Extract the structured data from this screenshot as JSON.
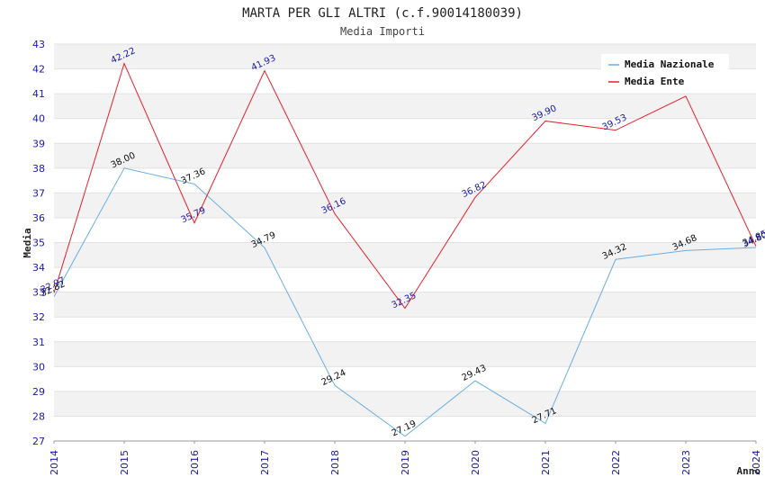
{
  "header": {
    "title": "MARTA PER GLI ALTRI (c.f.90014180039)",
    "subtitle": "Media Importi"
  },
  "chart_data": {
    "type": "line",
    "title": "MARTA PER GLI ALTRI (c.f.90014180039)",
    "subtitle": "Media Importi",
    "xlabel": "Anno",
    "ylabel": "Media",
    "x": [
      2014,
      2015,
      2016,
      2017,
      2018,
      2019,
      2020,
      2021,
      2022,
      2023,
      2024
    ],
    "ylim": [
      27,
      43
    ],
    "yticks": [
      27,
      28,
      29,
      30,
      31,
      32,
      33,
      34,
      35,
      36,
      37,
      38,
      39,
      40,
      41,
      42,
      43
    ],
    "grid": "horizontal bands",
    "legend_position": "top-right",
    "series": [
      {
        "name": "Media Nazionale",
        "color": "#6aaee6",
        "values": [
          32.82,
          38.0,
          37.36,
          34.79,
          29.24,
          27.19,
          29.43,
          27.71,
          34.32,
          34.68,
          34.8
        ],
        "labels": [
          "32.82",
          "38.00",
          "37.36",
          "34.79",
          "29.24",
          "27.19",
          "29.43",
          "27.71",
          "34.32",
          "34.68",
          "34.80"
        ]
      },
      {
        "name": "Media Ente",
        "color": "#e8202a",
        "values": [
          32.97,
          42.22,
          35.79,
          41.93,
          36.16,
          32.35,
          36.82,
          39.9,
          39.53,
          40.9,
          34.85
        ],
        "labels": [
          "32.97",
          "42.22",
          "35.79",
          "41.93",
          "36.16",
          "32.35",
          "36.82",
          "39.90",
          "39.53",
          "",
          "34.85"
        ]
      }
    ]
  }
}
